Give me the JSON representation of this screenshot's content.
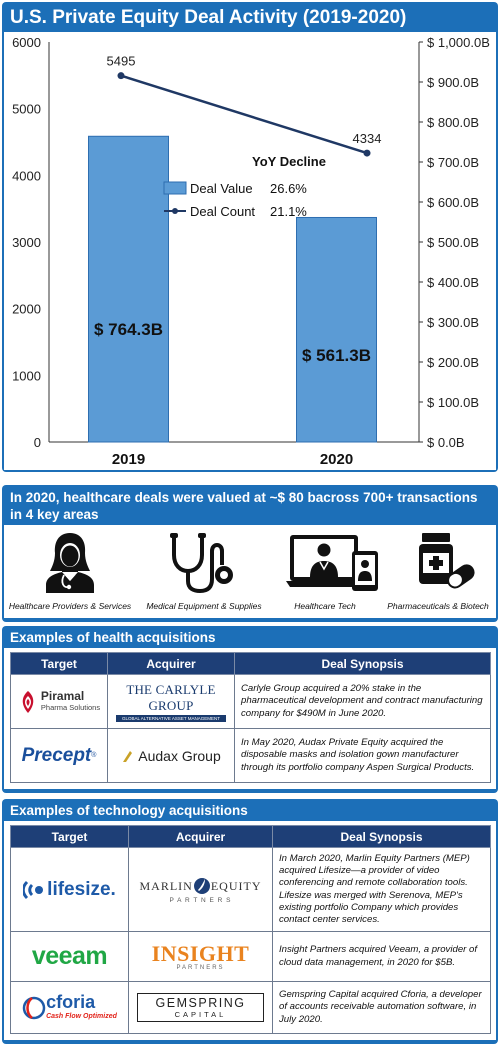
{
  "chart_panel": {
    "title": "U.S. Private Equity Deal Activity (2019-2020)"
  },
  "chart_data": {
    "type": "bar",
    "title": "U.S. Private Equity Deal Activity (2019-2020)",
    "categories": [
      "2019",
      "2020"
    ],
    "series": [
      {
        "name": "Deal Value",
        "type": "bar",
        "axis": "right",
        "values": [
          764.3,
          561.3
        ],
        "labels": [
          "$ 764.3B",
          "$ 561.3B"
        ],
        "color": "#5b9bd5"
      },
      {
        "name": "Deal Count",
        "type": "line",
        "axis": "left",
        "values": [
          5495,
          4334
        ],
        "labels": [
          "5495",
          "4334"
        ],
        "color": "#1f3864"
      }
    ],
    "left_axis": {
      "min": 0,
      "max": 6000,
      "ticks": [
        "0",
        "1000",
        "2000",
        "3000",
        "4000",
        "5000",
        "6000"
      ]
    },
    "right_axis": {
      "min": 0,
      "max": 1000,
      "ticks": [
        "$ 0.0B",
        "$ 100.0B",
        "$ 200.0B",
        "$ 300.0B",
        "$ 400.0B",
        "$ 500.0B",
        "$ 600.0B",
        "$ 700.0B",
        "$ 800.0B",
        "$ 900.0B",
        "$ 1,000.0B"
      ]
    },
    "legend": {
      "header": "YoY Decline",
      "items": [
        {
          "name": "Deal Value",
          "value": "26.6%"
        },
        {
          "name": "Deal Count",
          "value": "21.1%"
        }
      ],
      "placement": "center"
    }
  },
  "healthcare": {
    "title": "In 2020, healthcare deals were valued at ~$ 80 bacross 700+ transactions in 4 key areas",
    "areas": [
      {
        "label": "Healthcare Providers & Services",
        "icon": "doctor-icon"
      },
      {
        "label": "Medical Equipment & Supplies",
        "icon": "stethoscope-icon"
      },
      {
        "label": "Healthcare Tech",
        "icon": "telehealth-icon"
      },
      {
        "label": "Pharmaceuticals & Biotech",
        "icon": "medicine-bottle-icon"
      }
    ]
  },
  "health_acq": {
    "title": "Examples of health acquisitions",
    "headers": [
      "Target",
      "Acquirer",
      "Deal Synopsis"
    ],
    "rows": [
      {
        "target": {
          "name": "Piramal",
          "sub": "Pharma Solutions"
        },
        "acquirer": {
          "name": "THE CARLYLE GROUP",
          "sub": "GLOBAL ALTERNATIVE ASSET MANAGEMENT"
        },
        "synopsis": "Carlyle Group acquired a 20% stake in the pharmaceutical development and contract manufacturing company for $490M in June 2020."
      },
      {
        "target": {
          "name": "Precept",
          "sub": "®"
        },
        "acquirer": {
          "name": "Audax Group",
          "sub": ""
        },
        "synopsis": "In May 2020, Audax Private Equity acquired the disposable masks and isolation gown manufacturer through its portfolio company Aspen Surgical Products."
      }
    ]
  },
  "tech_acq": {
    "title": "Examples of technology acquisitions",
    "headers": [
      "Target",
      "Acquirer",
      "Deal Synopsis"
    ],
    "rows": [
      {
        "target": {
          "name": "lifesize.",
          "sub": ""
        },
        "acquirer": {
          "name": "MARLIN",
          "name2": "EQUITY",
          "sub": "P A R T N E R S"
        },
        "synopsis": "In March 2020, Marlin Equity Partners (MEP) acquired Lifesize—a provider of video conferencing and remote collaboration tools. Lifesize was merged with Serenova, MEP's existing portfolio Company which provides contact center services."
      },
      {
        "target": {
          "name": "veeam",
          "sub": ""
        },
        "acquirer": {
          "name": "INSIGHT",
          "sub": "PARTNERS"
        },
        "synopsis": "Insight Partners acquired Veeam, a provider of cloud data management, in 2020 for $5B."
      },
      {
        "target": {
          "name": "cforia",
          "sub": "Cash Flow Optimized"
        },
        "acquirer": {
          "name": "GEMSPRING",
          "sub": "CAPITAL"
        },
        "synopsis": "Gemspring Capital acquired Cforia, a developer of accounts receivable automation software, in July 2020."
      }
    ]
  }
}
